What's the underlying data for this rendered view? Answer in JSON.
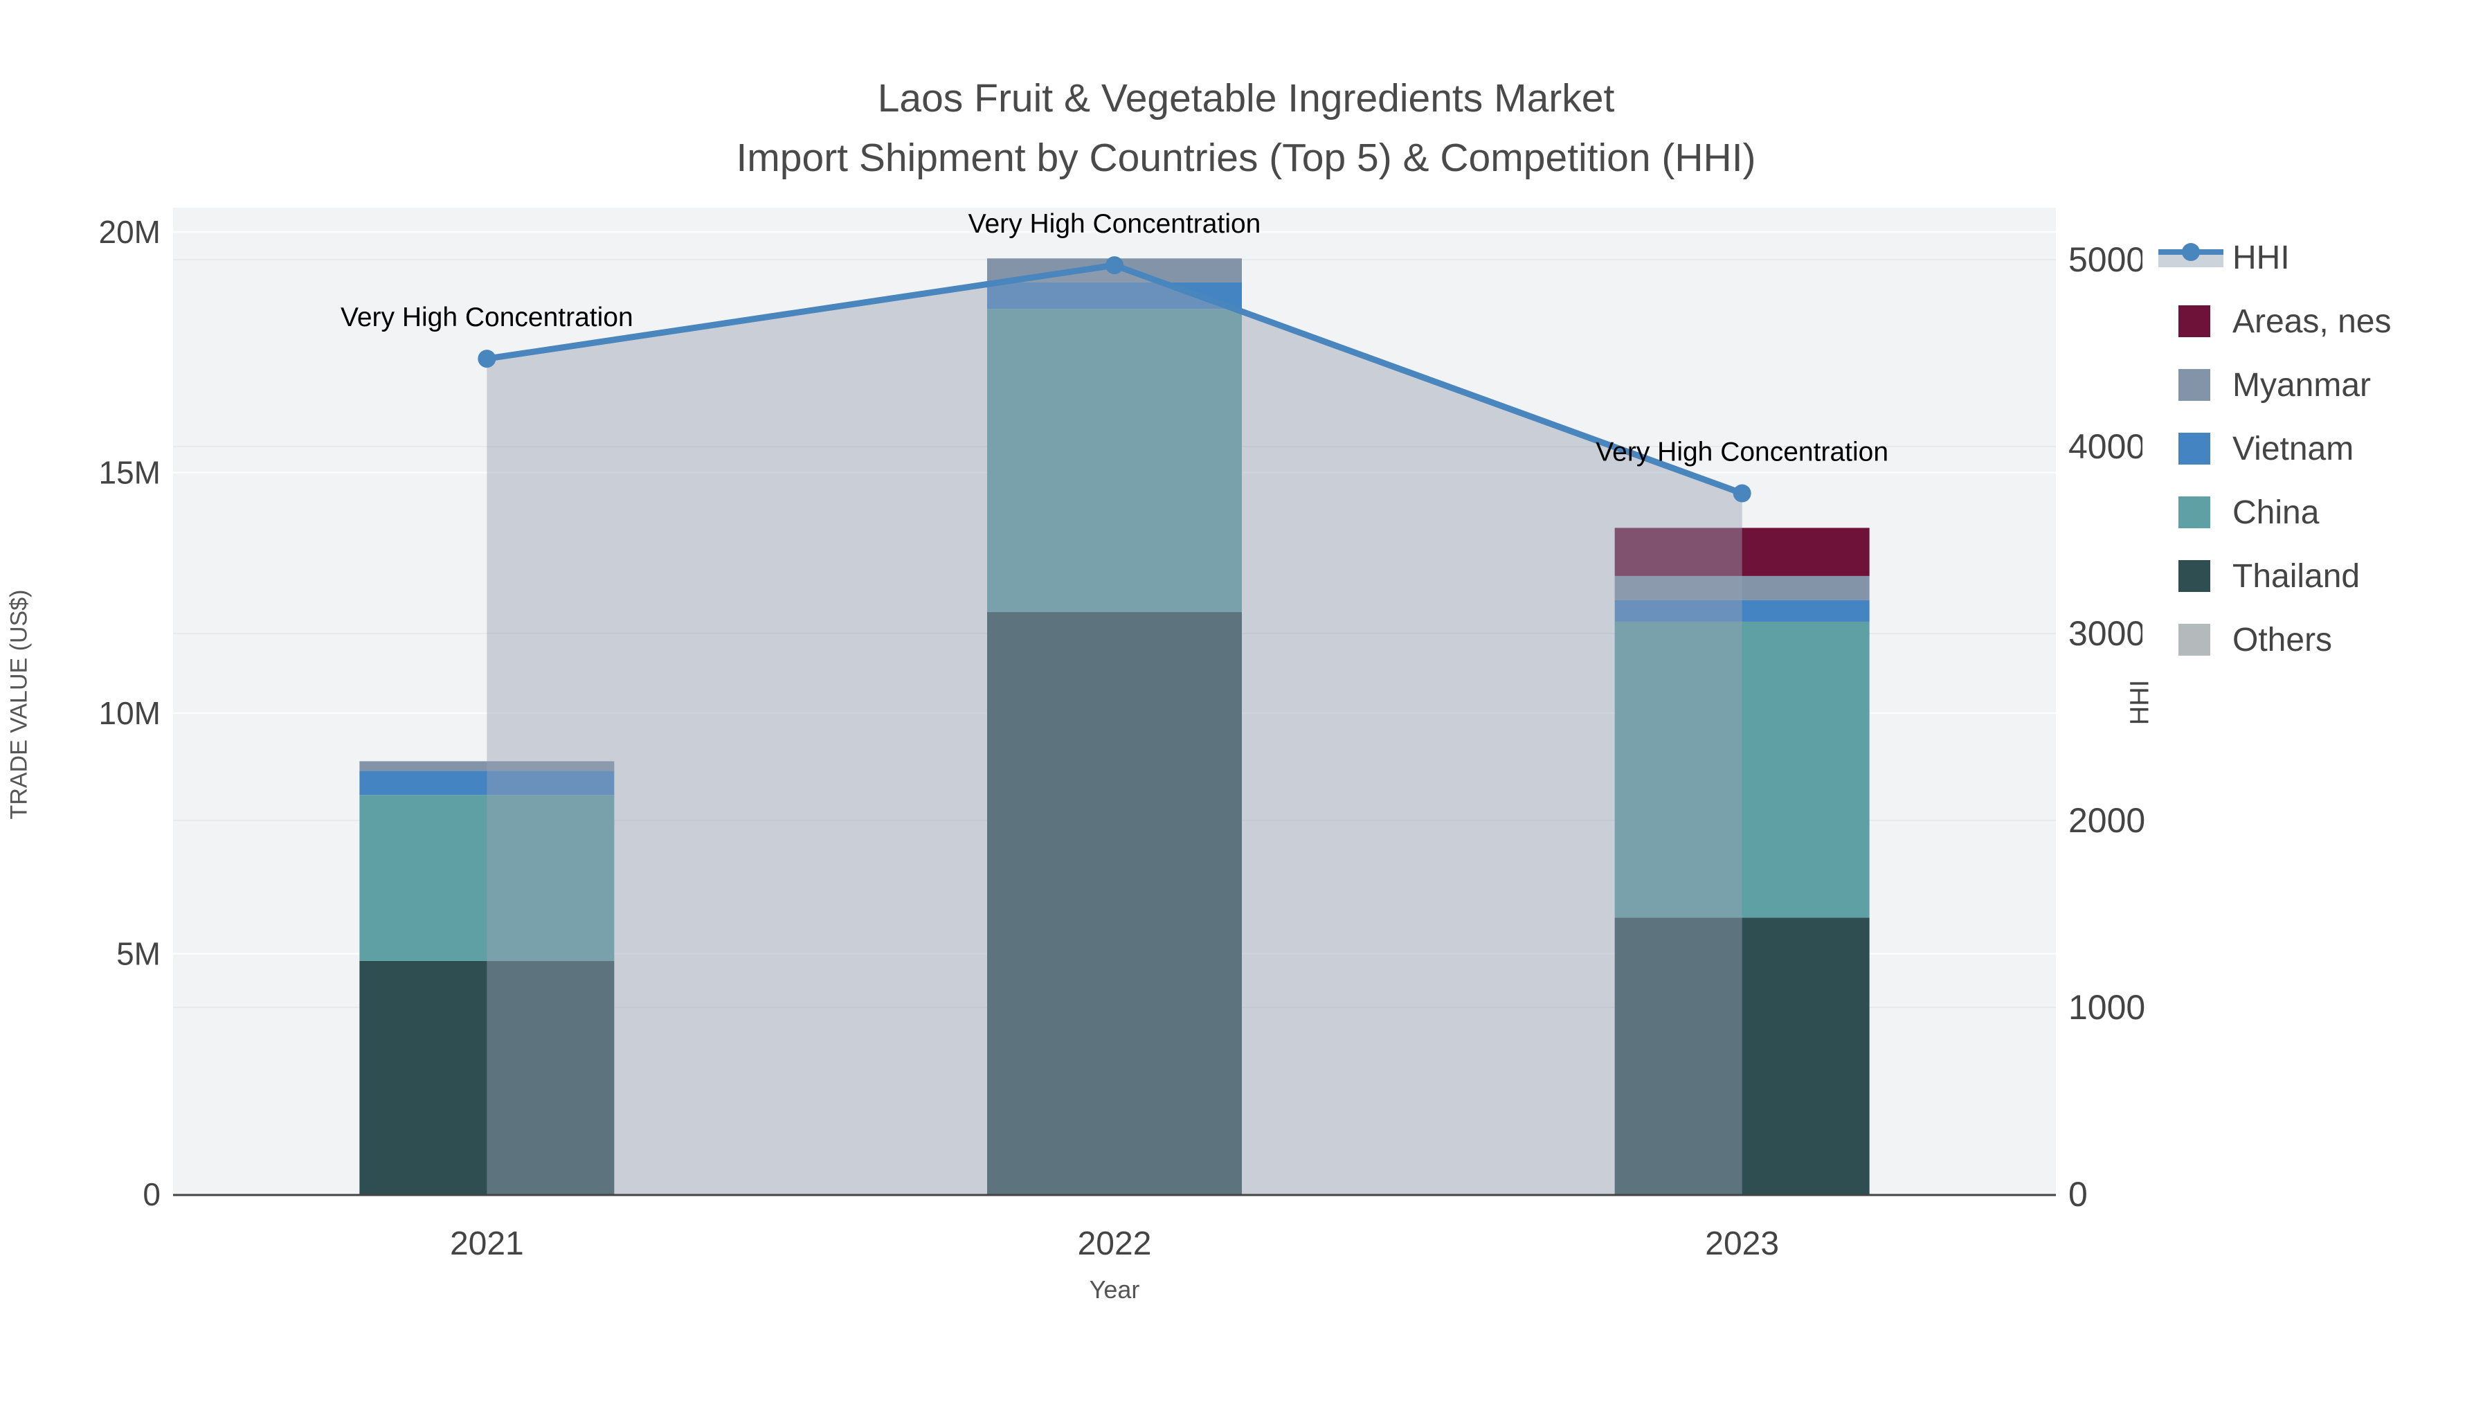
{
  "title": {
    "line1": "Laos Fruit & Vegetable Ingredients Market",
    "line2": "Import Shipment by Countries (Top 5) & Competition (HHI)"
  },
  "axes": {
    "y_left": {
      "title": "TRADE VALUE (US$)",
      "range": [
        0,
        20000000
      ],
      "ticks": [
        {
          "label": "0",
          "value": 0
        },
        {
          "label": "5M",
          "value": 5000000
        },
        {
          "label": "10M",
          "value": 10000000
        },
        {
          "label": "15M",
          "value": 15000000
        },
        {
          "label": "20M",
          "value": 20000000
        }
      ]
    },
    "y_right": {
      "title": "HHI",
      "range": [
        0,
        5000
      ],
      "ticks": [
        {
          "label": "0",
          "value": 0
        },
        {
          "label": "1000",
          "value": 1000
        },
        {
          "label": "2000",
          "value": 2000
        },
        {
          "label": "3000",
          "value": 3000
        },
        {
          "label": "4000",
          "value": 4000
        },
        {
          "label": "5000",
          "value": 5000
        }
      ]
    },
    "x": {
      "title": "Year",
      "categories": [
        "2021",
        "2022",
        "2023"
      ]
    }
  },
  "legend": {
    "items": [
      {
        "label": "HHI",
        "type": "line",
        "color": "#4A86BE",
        "band": "#CDD3DB"
      },
      {
        "label": "Areas, nes",
        "type": "swatch",
        "color": "#6F1239"
      },
      {
        "label": "Myanmar",
        "type": "swatch",
        "color": "#8494A8"
      },
      {
        "label": "Vietnam",
        "type": "swatch",
        "color": "#4484C2"
      },
      {
        "label": "China",
        "type": "swatch",
        "color": "#5FA0A5"
      },
      {
        "label": "Thailand",
        "type": "swatch",
        "color": "#2E4E52"
      },
      {
        "label": "Others",
        "type": "swatch",
        "color": "#B4B9BC"
      }
    ]
  },
  "chart_data": {
    "type": "bar+line",
    "unit": "US$",
    "categories": [
      "2021",
      "2022",
      "2023"
    ],
    "series": [
      {
        "name": "Thailand",
        "color": "#2E4E52",
        "values": [
          4850000,
          12100000,
          5750000
        ]
      },
      {
        "name": "China",
        "color": "#5FA0A5",
        "values": [
          3450000,
          6300000,
          6150000
        ]
      },
      {
        "name": "Vietnam",
        "color": "#4484C2",
        "values": [
          500000,
          550000,
          450000
        ]
      },
      {
        "name": "Myanmar",
        "color": "#8494A8",
        "values": [
          200000,
          500000,
          500000
        ]
      },
      {
        "name": "Areas, nes",
        "color": "#6F1239",
        "values": [
          0,
          0,
          1000000
        ]
      },
      {
        "name": "Others",
        "color": "#B4B9BC",
        "values": [
          0,
          0,
          0
        ]
      }
    ],
    "line_series": {
      "name": "HHI",
      "axis": "y_right",
      "color": "#4A86BE",
      "area_fill": "rgba(150,162,180,0.45)",
      "values": [
        4470,
        4970,
        3750
      ]
    },
    "annotations": [
      {
        "x": "2021",
        "text": "Very High Concentration"
      },
      {
        "x": "2022",
        "text": "Very High Concentration"
      },
      {
        "x": "2023",
        "text": "Very High Concentration"
      }
    ],
    "plot_background": "#F2F3F4",
    "gridline_major": "#FBFCFC",
    "gridline_minor": "#E7EAEC",
    "axis_line_color": "#444444",
    "tick_color": "#444444",
    "annotation_color": "#000000"
  }
}
